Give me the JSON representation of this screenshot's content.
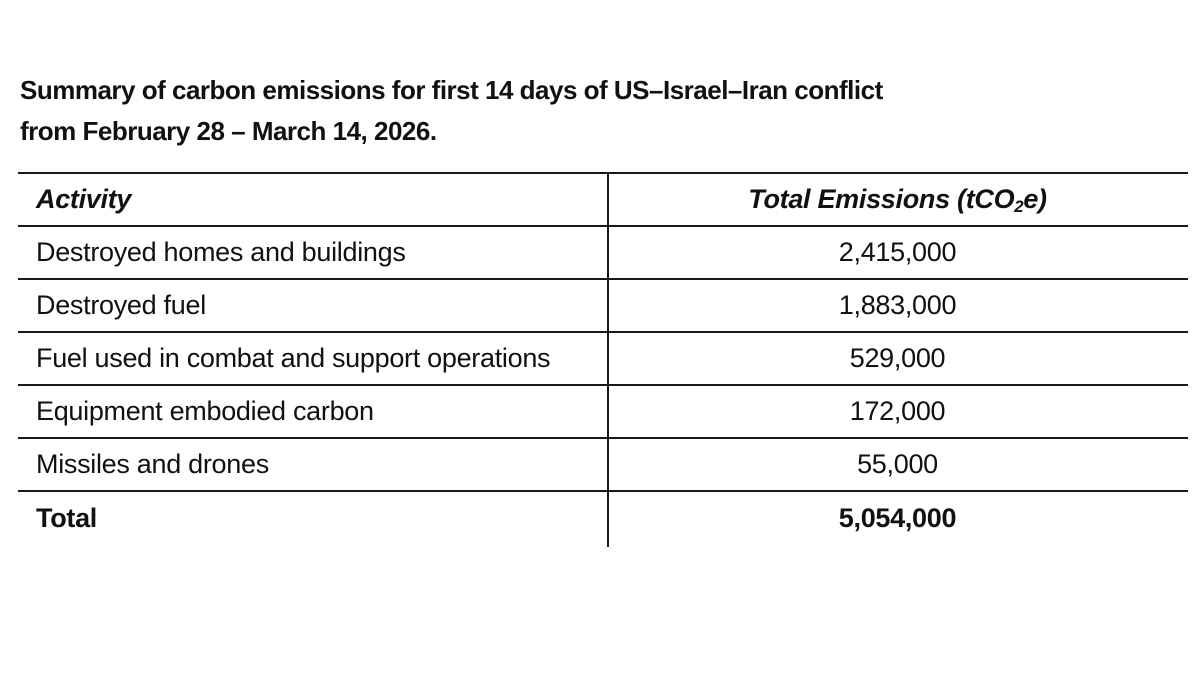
{
  "page": {
    "background": "#ffffff",
    "text_color": "#111111",
    "rule_color": "#1a1a1a"
  },
  "title": {
    "line1": "Summary of carbon emissions for first 14 days of US–Israel–Iran conflict",
    "line2": "from February 28 – March 14, 2026."
  },
  "table": {
    "columns": {
      "activity": "Activity",
      "emissions_prefix": "Total Emissions (tCO",
      "emissions_sub": "2",
      "emissions_suffix": "e)"
    },
    "rows": [
      {
        "activity": "Destroyed homes and buildings",
        "emissions": "2,415,000"
      },
      {
        "activity": "Destroyed fuel",
        "emissions": "1,883,000"
      },
      {
        "activity": "Fuel used in combat and support operations",
        "emissions": "529,000"
      },
      {
        "activity": "Equipment embodied carbon",
        "emissions": "172,000"
      },
      {
        "activity": "Missiles and drones",
        "emissions": "55,000"
      }
    ],
    "total": {
      "label": "Total",
      "emissions": "5,054,000"
    }
  },
  "chart_data": {
    "type": "table",
    "title": "Summary of carbon emissions for first 14 days of US–Israel–Iran conflict from February 28 – March 14, 2026.",
    "columns": [
      "Activity",
      "Total Emissions (tCO2e)"
    ],
    "categories": [
      "Destroyed homes and buildings",
      "Destroyed fuel",
      "Fuel used in combat and support operations",
      "Equipment embodied carbon",
      "Missiles and drones"
    ],
    "values": [
      2415000,
      1883000,
      529000,
      172000,
      55000
    ],
    "total": 5054000,
    "unit": "tCO2e"
  }
}
